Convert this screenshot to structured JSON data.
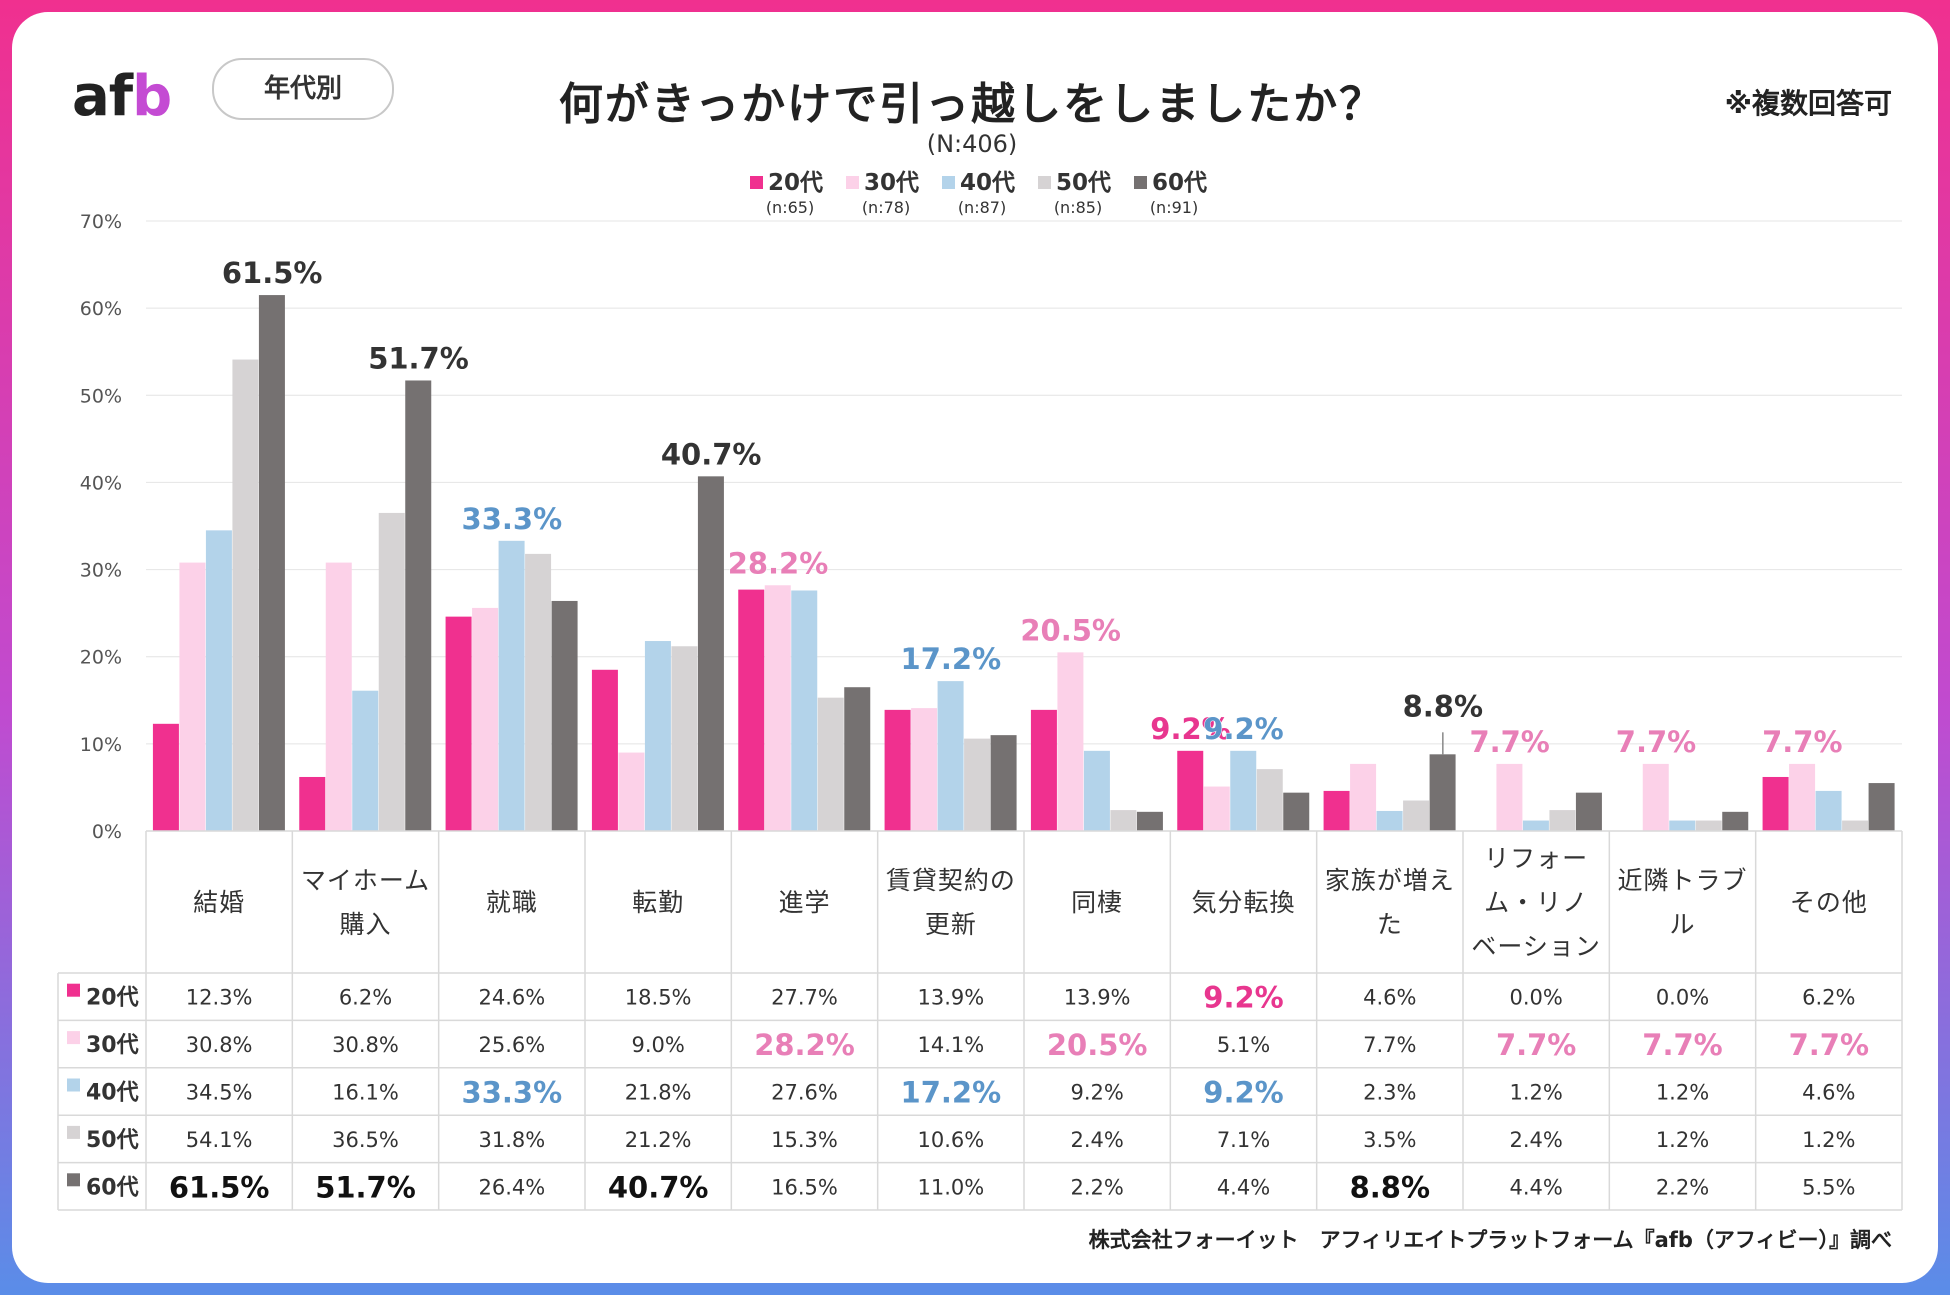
{
  "header": {
    "logo": {
      "a": "a",
      "f": "f",
      "b": "b"
    },
    "segment_label": "年代別",
    "note": "※複数回答可",
    "footer": "株式会社フォーイット　アフィリエイトプラットフォーム『afb（アフィビー）』調べ"
  },
  "colors": {
    "20代": "#f0308f",
    "30代": "#fcd1e8",
    "40代": "#b3d3ea",
    "50代": "#d6d3d4",
    "60代": "#757171",
    "highlight_pink": "#e87fb7",
    "highlight_blue": "#5b95c9",
    "highlight_magenta": "#e8368f",
    "highlight_dark": "#333333",
    "grid": "#e4e4e4",
    "table_line": "#d9d9d9"
  },
  "chart_data": {
    "type": "bar",
    "title": "何がきっかけで引っ越しをしましたか？",
    "subtitle": "(N:406)",
    "ylim": [
      0,
      70
    ],
    "y_ticks": [
      "0%",
      "10%",
      "20%",
      "30%",
      "40%",
      "50%",
      "60%",
      "70%"
    ],
    "categories": [
      [
        "結婚"
      ],
      [
        "マイホーム",
        "購入"
      ],
      [
        "就職"
      ],
      [
        "転勤"
      ],
      [
        "進学"
      ],
      [
        "賃貸契約の",
        "更新"
      ],
      [
        "同棲"
      ],
      [
        "気分転換"
      ],
      [
        "家族が増え",
        "た"
      ],
      [
        "リフォー",
        "ム・リノ",
        "ベーション"
      ],
      [
        "近隣トラブ",
        "ル"
      ],
      [
        "その他"
      ]
    ],
    "series": [
      {
        "name": "20代",
        "n": "(n:65)",
        "color_key": "20代",
        "values": [
          12.3,
          6.2,
          24.6,
          18.5,
          27.7,
          13.9,
          13.9,
          9.2,
          4.6,
          0.0,
          0.0,
          6.2
        ],
        "labels": [
          "12.3%",
          "6.2%",
          "24.6%",
          "18.5%",
          "27.7%",
          "13.9%",
          "13.9%",
          "9.2%",
          "4.6%",
          "0.0%",
          "0.0%",
          "6.2%"
        ]
      },
      {
        "name": "30代",
        "n": "(n:78)",
        "color_key": "30代",
        "values": [
          30.8,
          30.8,
          25.6,
          9.0,
          28.2,
          14.1,
          20.5,
          5.1,
          7.7,
          7.7,
          7.7,
          7.7
        ],
        "labels": [
          "30.8%",
          "30.8%",
          "25.6%",
          "9.0%",
          "28.2%",
          "14.1%",
          "20.5%",
          "5.1%",
          "7.7%",
          "7.7%",
          "7.7%",
          "7.7%"
        ]
      },
      {
        "name": "40代",
        "n": "(n:87)",
        "color_key": "40代",
        "values": [
          34.5,
          16.1,
          33.3,
          21.8,
          27.6,
          17.2,
          9.2,
          9.2,
          2.3,
          1.2,
          1.2,
          4.6
        ],
        "labels": [
          "34.5%",
          "16.1%",
          "33.3%",
          "21.8%",
          "27.6%",
          "17.2%",
          "9.2%",
          "9.2%",
          "2.3%",
          "1.2%",
          "1.2%",
          "4.6%"
        ]
      },
      {
        "name": "50代",
        "n": "(n:85)",
        "color_key": "50代",
        "values": [
          54.1,
          36.5,
          31.8,
          21.2,
          15.3,
          10.6,
          2.4,
          7.1,
          3.5,
          2.4,
          1.2,
          1.2
        ],
        "labels": [
          "54.1%",
          "36.5%",
          "31.8%",
          "21.2%",
          "15.3%",
          "10.6%",
          "2.4%",
          "7.1%",
          "3.5%",
          "2.4%",
          "1.2%",
          "1.2%"
        ]
      },
      {
        "name": "60代",
        "n": "(n:91)",
        "color_key": "60代",
        "values": [
          61.5,
          51.7,
          26.4,
          40.7,
          16.5,
          11.0,
          2.2,
          4.4,
          8.8,
          4.4,
          2.2,
          5.5
        ],
        "labels": [
          "61.5%",
          "51.7%",
          "26.4%",
          "40.7%",
          "16.5%",
          "11.0%",
          "2.2%",
          "4.4%",
          "8.8%",
          "4.4%",
          "2.2%",
          "5.5%"
        ]
      }
    ],
    "highlights": [
      {
        "category": 0,
        "series": 4,
        "text": "61.5%",
        "color_key": "highlight_dark"
      },
      {
        "category": 1,
        "series": 4,
        "text": "51.7%",
        "color_key": "highlight_dark"
      },
      {
        "category": 2,
        "series": 2,
        "text": "33.3%",
        "color_key": "highlight_blue"
      },
      {
        "category": 3,
        "series": 4,
        "text": "40.7%",
        "color_key": "highlight_dark"
      },
      {
        "category": 4,
        "series": 1,
        "text": "28.2%",
        "color_key": "highlight_pink"
      },
      {
        "category": 5,
        "series": 2,
        "text": "17.2%",
        "color_key": "highlight_blue"
      },
      {
        "category": 6,
        "series": 1,
        "text": "20.5%",
        "color_key": "highlight_pink"
      },
      {
        "category": 7,
        "series": 0,
        "text": "9.2%",
        "color_key": "highlight_magenta"
      },
      {
        "category": 7,
        "series": 2,
        "text": "9.2%",
        "color_key": "highlight_blue"
      },
      {
        "category": 8,
        "series": 4,
        "text": "8.8%",
        "color_key": "highlight_dark"
      },
      {
        "category": 9,
        "series": 1,
        "text": "7.7%",
        "color_key": "highlight_pink"
      },
      {
        "category": 10,
        "series": 1,
        "text": "7.7%",
        "color_key": "highlight_pink"
      },
      {
        "category": 11,
        "series": 1,
        "text": "7.7%",
        "color_key": "highlight_pink"
      }
    ]
  }
}
